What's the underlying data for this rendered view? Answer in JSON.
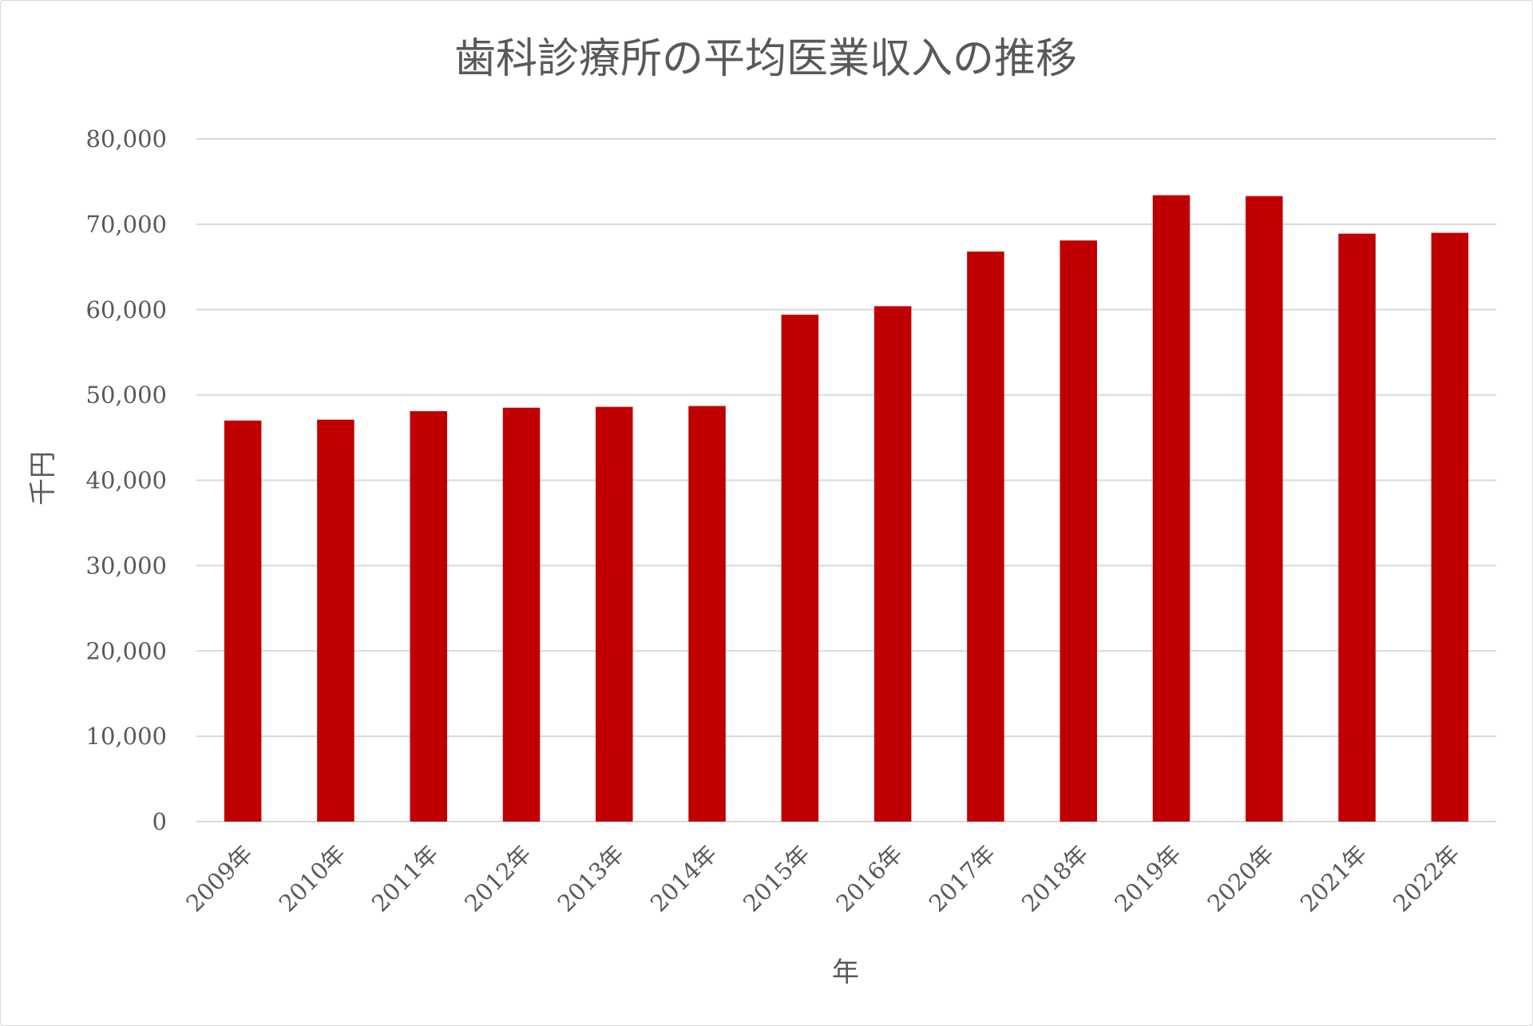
{
  "chart_data": {
    "type": "bar",
    "title": "歯科診療所の平均医業収入の推移",
    "xlabel": "年",
    "ylabel": "千円",
    "categories": [
      "2009年",
      "2010年",
      "2011年",
      "2012年",
      "2013年",
      "2014年",
      "2015年",
      "2016年",
      "2017年",
      "2018年",
      "2019年",
      "2020年",
      "2021年",
      "2022年"
    ],
    "values": [
      47000,
      47100,
      48100,
      48500,
      48600,
      48700,
      59400,
      60400,
      66800,
      68100,
      73400,
      73300,
      68900,
      69000
    ],
    "ylim": [
      0,
      80000
    ],
    "yticks": [
      "0",
      "10,000",
      "20,000",
      "30,000",
      "40,000",
      "50,000",
      "60,000",
      "70,000",
      "80,000"
    ],
    "grid": true,
    "legend": "none",
    "bar_color": "#c00000",
    "grid_color": "#d9d9d9",
    "text_color": "#595959"
  }
}
